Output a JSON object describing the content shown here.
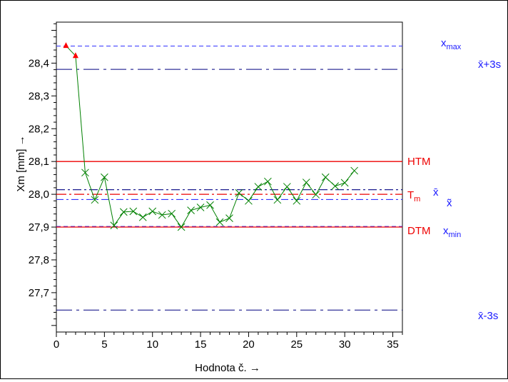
{
  "chart_data": {
    "type": "line",
    "xlabel": "Hodnota č. →",
    "ylabel": "Xm [mm] →",
    "xlim": [
      0,
      36
    ],
    "ylim": [
      27.58,
      28.525
    ],
    "x_ticks": [
      0,
      5,
      10,
      15,
      20,
      25,
      30,
      35
    ],
    "y_ticks": [
      27.7,
      27.8,
      27.9,
      28.0,
      28.1,
      28.2,
      28.3,
      28.4
    ],
    "y_tick_labels": [
      "27,7",
      "27,8",
      "27,9",
      "28,0",
      "28,1",
      "28,2",
      "28,3",
      "28,4"
    ],
    "grid": false,
    "series": [
      {
        "color": "#008000",
        "marker": "x",
        "x": [
          1,
          2,
          3,
          4,
          5,
          6,
          7,
          8,
          9,
          10,
          11,
          12,
          13,
          14,
          15,
          16,
          17,
          18,
          19,
          20,
          21,
          22,
          23,
          24,
          25,
          26,
          27,
          28,
          29,
          30,
          31
        ],
        "y": [
          28.453,
          28.422,
          28.066,
          27.983,
          28.052,
          27.905,
          27.946,
          27.948,
          27.93,
          27.948,
          27.937,
          27.941,
          27.9,
          27.951,
          27.96,
          27.967,
          27.915,
          27.927,
          28.004,
          27.98,
          28.023,
          28.039,
          27.983,
          28.023,
          27.98,
          28.036,
          27.999,
          28.052,
          28.025,
          28.035,
          28.072
        ]
      }
    ],
    "outliers": {
      "marker": "triangle",
      "color": "#ff0000",
      "x": [
        1,
        2
      ],
      "y": [
        28.453,
        28.422
      ]
    },
    "reference_lines": [
      {
        "label": "xmax",
        "value": 28.452,
        "color": "#3333ff",
        "style": "dash-fine",
        "side_label": "x",
        "sub": "max"
      },
      {
        "label": "x̄+3s",
        "value": 28.381,
        "color": "#000080",
        "style": "dash-dot-long",
        "side_label": "x̄+3s"
      },
      {
        "label": "HTM",
        "value": 28.1,
        "color": "#ee0000",
        "style": "solid",
        "side_label": "HTM"
      },
      {
        "label": "x̄",
        "value": 28.014,
        "color": "#000080",
        "style": "dash-dot",
        "side_label": "x̄"
      },
      {
        "label": "Tm",
        "value": 28.0,
        "color": "#ee0000",
        "style": "dash-dot-red",
        "side_label": "T",
        "sub": "m"
      },
      {
        "label": "x̃",
        "value": 27.984,
        "color": "#3333ff",
        "style": "dash-dot-blue",
        "side_label": "x̃"
      },
      {
        "label": "xmin",
        "value": 27.902,
        "color": "#3333ff",
        "style": "dash-fine",
        "side_label": "x",
        "sub": "min"
      },
      {
        "label": "DTM",
        "value": 27.9,
        "color": "#ee0000",
        "style": "solid",
        "side_label": "DTM"
      },
      {
        "label": "x̄-3s",
        "value": 27.647,
        "color": "#000080",
        "style": "dash-dot-long",
        "side_label": "x̄-3s"
      }
    ]
  },
  "labels": {
    "htm": "HTM",
    "dtm": "DTM",
    "tm": "T",
    "tm_sub": "m",
    "xbar": "x̄",
    "xtilde": "x̃",
    "xmax": "x",
    "xmax_sub": "max",
    "xmin": "x",
    "xmin_sub": "min",
    "xbar_plus": "x̄+3s",
    "xbar_minus": "x̄-3s"
  }
}
